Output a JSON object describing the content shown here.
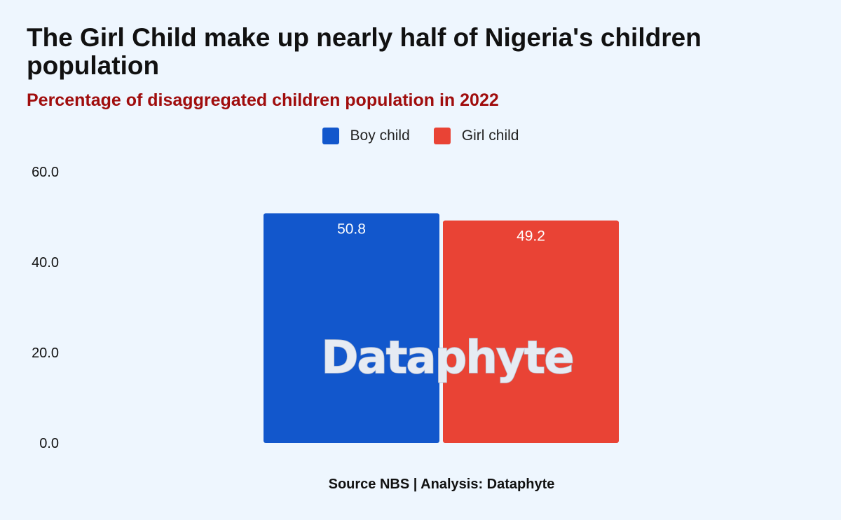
{
  "title": "The Girl Child make up nearly half of Nigeria's children population",
  "subtitle": "Percentage of disaggregated children population in 2022",
  "source": "Source NBS | Analysis: Dataphyte",
  "watermark": "Dataphyte",
  "colors": {
    "boy": "#1257cc",
    "girl": "#e94335",
    "subtitle": "#a00d0d",
    "background": "#eef6fe"
  },
  "legend": [
    {
      "label": "Boy child",
      "color": "#1257cc"
    },
    {
      "label": "Girl child",
      "color": "#e94335"
    }
  ],
  "chart_data": {
    "type": "bar",
    "title": "The Girl Child make up nearly half of Nigeria's children population",
    "subtitle": "Percentage of disaggregated children population in 2022",
    "categories": [
      ""
    ],
    "series": [
      {
        "name": "Boy child",
        "values": [
          50.8
        ],
        "color": "#1257cc"
      },
      {
        "name": "Girl child",
        "values": [
          49.2
        ],
        "color": "#e94335"
      }
    ],
    "xlabel": "",
    "ylabel": "",
    "ylim": [
      0,
      60
    ],
    "yticks": [
      "0.0",
      "20.0",
      "40.0",
      "60.0"
    ],
    "ytick_values": [
      0,
      20,
      40,
      60
    ],
    "grid": false,
    "legend_position": "top-center"
  }
}
